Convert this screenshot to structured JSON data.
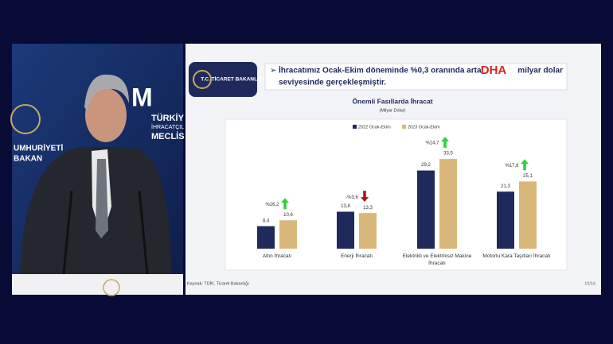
{
  "slide": {
    "ministry": "T.C. TİCARET BAKANLIĞI",
    "headline": [
      "İhracatımız Ocak-Ekim döneminde %0,3 oranında arta",
      "milyar dolar",
      "seviyesinde gerçekleşmiştir."
    ],
    "watermark": "DHA",
    "source": "Kaynak: TÜİK, Ticaret Bakanlığı",
    "page": "10/16"
  },
  "backdrop": [
    "TÜRKİY",
    "İHRACATÇIL",
    "MECLİS",
    "UMHURİYETİ",
    "BAKAN"
  ],
  "chart_data": {
    "type": "bar",
    "title": "Önemli Fasıllarda İhracat",
    "subtitle": "(Milyar Dolar)",
    "categories": [
      "Altın İhracatı",
      "Enerji İhracatı",
      "Elektrikli ve Elektriksiz Makine İhracatı",
      "Motorlu Kara Taşıtları İhracatı"
    ],
    "series": [
      {
        "name": "2022 Ocak-Ekim",
        "color": "#1f2a5c",
        "values": [
          8.4,
          13.8,
          29.2,
          21.3
        ],
        "value_labels": [
          "8,4",
          "13,8",
          "29,2",
          "21,3"
        ]
      },
      {
        "name": "2023 Ocak-Ekim",
        "color": "#d9b77a",
        "values": [
          10.6,
          13.3,
          33.5,
          25.1
        ],
        "value_labels": [
          "10,6",
          "13,3",
          "33,5",
          "25,1"
        ]
      }
    ],
    "annotations": [
      {
        "text": "%26,2",
        "direction": "up"
      },
      {
        "text": "-%3,6",
        "direction": "down"
      },
      {
        "text": "%14,7",
        "direction": "up"
      },
      {
        "text": "%17,8",
        "direction": "up"
      }
    ],
    "arrow_colors": {
      "up": "#2fd13c",
      "down": "#b3161b"
    }
  }
}
